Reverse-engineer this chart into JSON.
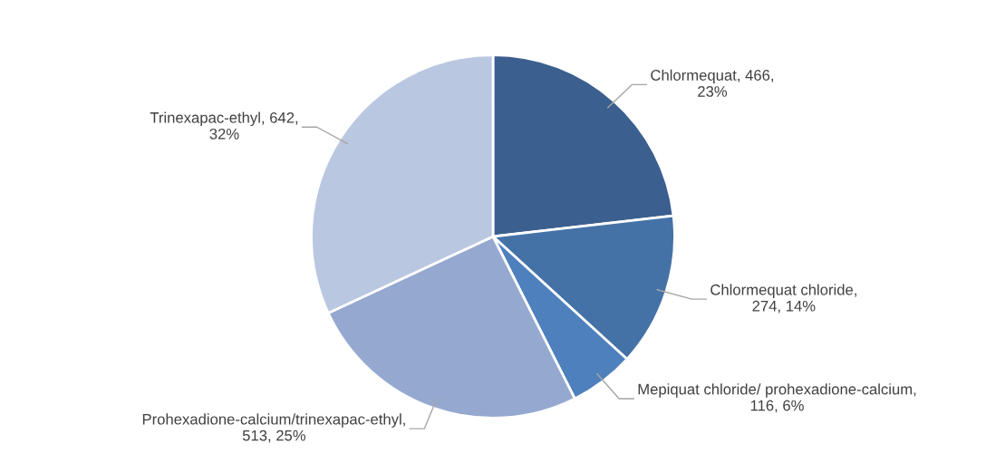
{
  "chart_data": {
    "type": "pie",
    "categories": [
      "Chlormequat",
      "Chlormequat chloride",
      "Mepiquat chloride/ prohexadione-calcium",
      "Prohexadione-calcium/trinexapac-ethyl",
      "Trinexapac-ethyl"
    ],
    "values": [
      466,
      274,
      116,
      513,
      642
    ],
    "colors": [
      "#3b5f8e",
      "#4472a6",
      "#4e80bd",
      "#95a9d0",
      "#bac7e0"
    ],
    "value_labels": [
      ", 466,\n23%",
      ",\n274, 14%",
      ",\n116, 6%",
      ",\n513, 25%",
      ", 642,\n32%"
    ],
    "legend": false
  }
}
